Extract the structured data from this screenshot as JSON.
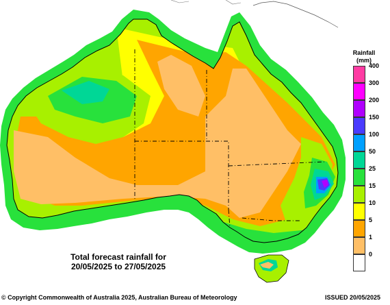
{
  "map": {
    "caption_line1": "Total forecast rainfall for",
    "caption_line2": "20/05/2025 to 27/05/2025"
  },
  "legend": {
    "title_line1": "Rainfall",
    "title_line2": "(mm)",
    "items": [
      {
        "label": "400",
        "color": "#ff3ba3"
      },
      {
        "label": "300",
        "color": "#ff00ff"
      },
      {
        "label": "200",
        "color": "#b000ff"
      },
      {
        "label": "150",
        "color": "#4a3bff"
      },
      {
        "label": "100",
        "color": "#00a0ff"
      },
      {
        "label": "50",
        "color": "#00d796"
      },
      {
        "label": "25",
        "color": "#28e13c"
      },
      {
        "label": "15",
        "color": "#a8f000"
      },
      {
        "label": "10",
        "color": "#ffff00"
      },
      {
        "label": "5",
        "color": "#ffa500"
      },
      {
        "label": "1",
        "color": "#ffbf66"
      },
      {
        "label": "0",
        "color": "#ffffff"
      }
    ]
  },
  "footer": {
    "copyright": "© Copyright Commonwealth of Australia 2025, Australian Bureau of Meteorology",
    "issued": "ISSUED 20/05/2025"
  }
}
